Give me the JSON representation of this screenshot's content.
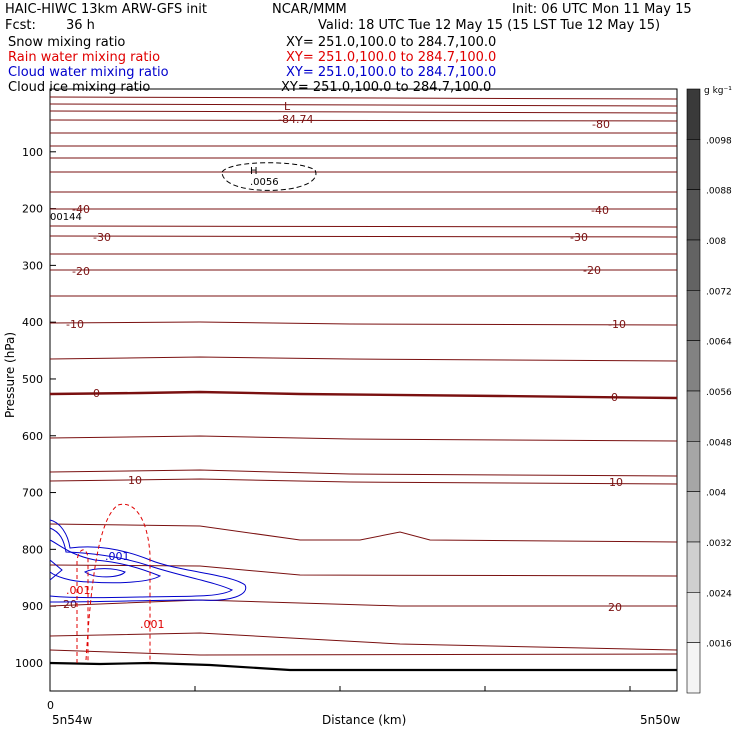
{
  "header": {
    "title_left": "HAIC-HIWC 13km ARW-GFS init",
    "org": "NCAR/MMM",
    "init": "Init: 06 UTC Mon 11 May 15",
    "fcst_label": "Fcst:",
    "fcst_value": "36 h",
    "valid": "Valid: 18 UTC Tue 12 May 15 (15 LST Tue 12 May 15)"
  },
  "fields": [
    {
      "name": "Snow mixing ratio",
      "xy": "XY= 251.0,100.0 to 284.7,100.0",
      "color": "#000000"
    },
    {
      "name": "Rain water mixing ratio",
      "xy": "XY= 251.0,100.0 to 284.7,100.0",
      "color": "#e00000"
    },
    {
      "name": "Cloud water mixing ratio",
      "xy": "XY= 251.0,100.0 to 284.7,100.0",
      "color": "#0000cc"
    },
    {
      "name": "Cloud ice mixing ratio",
      "xy": "XY= 251.0,100.0 to 284.7,100.0",
      "color": "#000000"
    }
  ],
  "chart_data": {
    "type": "contour",
    "ylabel": "Pressure (hPa)",
    "xlabel": "Distance (km)",
    "y_ticks": [
      "100",
      "200",
      "300",
      "400",
      "500",
      "600",
      "700",
      "800",
      "900",
      "1000"
    ],
    "ylim": [
      1060,
      0
    ],
    "x_start_label": "5n54w",
    "x_end_label": "5n50w",
    "x_zero_label": "0",
    "temperature_contours": [
      {
        "label": "-80",
        "pressure": 110
      },
      {
        "label": "-40",
        "pressure": 245
      },
      {
        "label": "-30",
        "pressure": 290
      },
      {
        "label": "-20",
        "pressure": 345
      },
      {
        "label": "-10",
        "pressure": 430
      },
      {
        "label": "0",
        "pressure": 560
      },
      {
        "label": "10",
        "pressure": 700
      },
      {
        "label": "20",
        "pressure": 905
      }
    ],
    "low_label": "L",
    "low_value": "-84.74",
    "high_label": "H",
    "high_value": ".0056",
    "edge_value": "00144",
    "rain_labels": [
      ".001",
      ".001"
    ],
    "cloud_water_label": ".001",
    "colorbar": {
      "units": "g kg⁻¹",
      "labels": [
        ".0098",
        ".0088",
        ".008",
        ".0072",
        ".0064",
        ".0056",
        ".0048",
        ".004",
        ".0032",
        ".0024",
        ".0016"
      ],
      "colors": [
        "#3a3a3a",
        "#474747",
        "#555555",
        "#636363",
        "#727272",
        "#828282",
        "#939393",
        "#a6a6a6",
        "#bababa",
        "#cfcfcf",
        "#e4e4e4",
        "#f4f4f4"
      ]
    }
  }
}
